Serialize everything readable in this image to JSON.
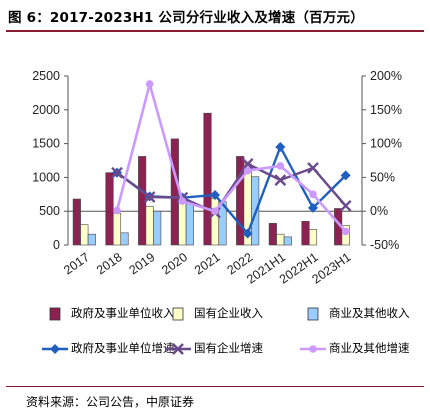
{
  "figure": {
    "title": "图 6：2017-2023H1 公司分行业收入及增速（百万元）",
    "source": "资料来源：公司公告，中原证券"
  },
  "chart_data": {
    "type": "bar",
    "categories": [
      "2017",
      "2018",
      "2019",
      "2020",
      "2021",
      "2022",
      "2021H1",
      "2022H1",
      "2023H1"
    ],
    "y_left": {
      "min": 0,
      "max": 2500,
      "ticks": [
        0,
        500,
        1000,
        1500,
        2000,
        2500
      ]
    },
    "y_right": {
      "min": -50,
      "max": 200,
      "ticks": [
        "-50%",
        "0%",
        "50%",
        "100%",
        "150%",
        "200%"
      ],
      "tick_values": [
        -50,
        0,
        50,
        100,
        150,
        200
      ]
    },
    "bars": [
      {
        "name": "政府及事业单位收入",
        "color": "#8b2252",
        "values": [
          680,
          1070,
          1310,
          1570,
          1950,
          1310,
          320,
          350,
          540
        ]
      },
      {
        "name": "国有企业收入",
        "color": "#ffffcc",
        "values": [
          300,
          470,
          570,
          700,
          690,
          1200,
          160,
          230,
          290
        ]
      },
      {
        "name": "商业及其他收入",
        "color": "#99ccff",
        "values": [
          160,
          180,
          500,
          640,
          640,
          1010,
          120,
          0,
          0
        ]
      }
    ],
    "lines": [
      {
        "name": "政府及事业单位增速",
        "color": "#1f5fbf",
        "marker": "diamond",
        "values": [
          null,
          57,
          22,
          20,
          24,
          -33,
          95,
          5,
          53
        ]
      },
      {
        "name": "国有企业增速",
        "color": "#6a4a8a",
        "marker": "x",
        "values": [
          null,
          57,
          21,
          20,
          -2,
          70,
          46,
          64,
          8
        ]
      },
      {
        "name": "商业及其他增速",
        "color": "#cc99ff",
        "marker": "circle",
        "values": [
          null,
          1,
          188,
          15,
          0,
          60,
          67,
          25,
          -30
        ]
      }
    ],
    "grid": false
  }
}
